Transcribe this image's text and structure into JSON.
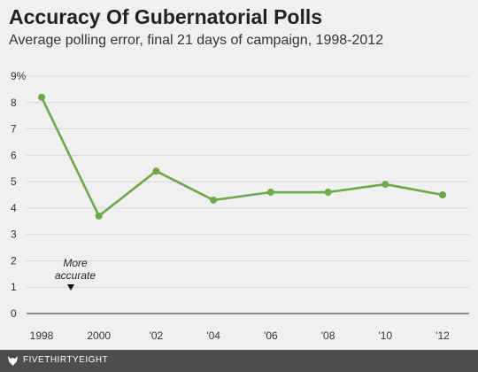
{
  "header": {
    "title": "Accuracy Of Gubernatorial Polls",
    "subtitle": "Average polling error, final 21 days of campaign, 1998-2012"
  },
  "chart_data": {
    "type": "line",
    "title": "Accuracy Of Gubernatorial Polls",
    "subtitle": "Average polling error, final 21 days of campaign, 1998-2012",
    "xlabel": "",
    "ylabel": "",
    "categories": [
      "1998",
      "2000",
      "'02",
      "'04",
      "'06",
      "'08",
      "'10",
      "'12"
    ],
    "series": [
      {
        "values": [
          8.2,
          3.7,
          5.4,
          4.3,
          4.6,
          4.6,
          4.9,
          4.5
        ]
      }
    ],
    "y_ticks": [
      "0",
      "1",
      "2",
      "3",
      "4",
      "5",
      "6",
      "7",
      "8",
      "9%"
    ],
    "ylim": [
      0,
      9
    ],
    "grid": true,
    "line_color": "#6ca84c",
    "annotation": {
      "lines": [
        "More",
        "accurate"
      ],
      "marker": "down-triangle"
    }
  },
  "footer": {
    "brand": "FIVETHIRTYEIGHT"
  }
}
